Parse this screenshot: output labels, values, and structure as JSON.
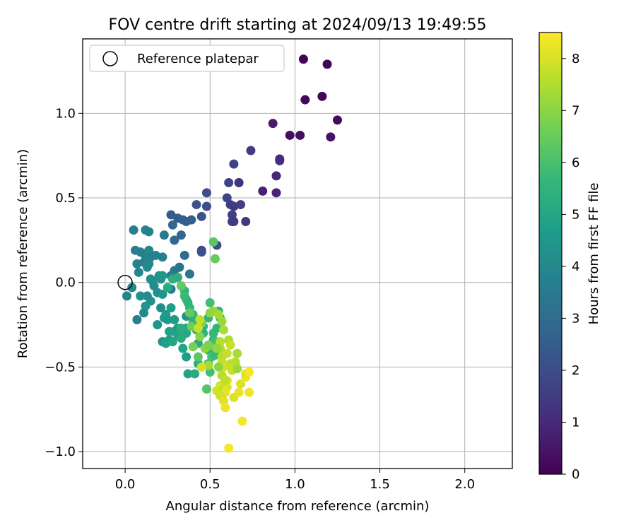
{
  "chart_data": {
    "type": "scatter",
    "title": "FOV centre drift starting at 2024/09/13 19:49:55",
    "xlabel": "Angular distance from reference (arcmin)",
    "ylabel": "Rotation from reference (arcmin)",
    "xlim": [
      -0.25,
      2.28
    ],
    "ylim": [
      -1.1,
      1.44
    ],
    "xticks": [
      0.0,
      0.5,
      1.0,
      1.5,
      2.0
    ],
    "xtick_labels": [
      "0.0",
      "0.5",
      "1.0",
      "1.5",
      "2.0"
    ],
    "yticks": [
      -1.0,
      -0.5,
      0.0,
      0.5,
      1.0
    ],
    "ytick_labels": [
      "−1.0",
      "−0.5",
      "0.0",
      "0.5",
      "1.0"
    ],
    "grid": true,
    "legend": {
      "location": "upper left",
      "entries": [
        "Reference platepar"
      ]
    },
    "reference": {
      "x": 0.0,
      "y": 0.0,
      "label": "Reference platepar"
    },
    "colorbar": {
      "label": "Hours from first FF file",
      "range": [
        0,
        8.5
      ],
      "ticks": [
        0,
        1,
        2,
        3,
        4,
        5,
        6,
        7,
        8
      ],
      "colormap": "viridis"
    },
    "colormap_stops": [
      "#440154",
      "#482878",
      "#3e4989",
      "#31688e",
      "#26828e",
      "#1f9e89",
      "#35b779",
      "#6ece58",
      "#b5de2b",
      "#fde725"
    ],
    "series": [
      {
        "columns": [
          "x",
          "y",
          "hours"
        ],
        "points": [
          [
            1.05,
            1.32,
            0.05
          ],
          [
            1.19,
            1.29,
            0.1
          ],
          [
            1.16,
            1.1,
            0.15
          ],
          [
            1.06,
            1.08,
            0.2
          ],
          [
            1.25,
            0.96,
            0.25
          ],
          [
            0.97,
            0.87,
            0.3
          ],
          [
            1.03,
            0.87,
            0.35
          ],
          [
            1.21,
            0.86,
            0.4
          ],
          [
            0.87,
            0.94,
            0.6
          ],
          [
            0.91,
            0.73,
            1.0
          ],
          [
            0.91,
            0.72,
            1.1
          ],
          [
            0.89,
            0.63,
            0.9
          ],
          [
            0.81,
            0.54,
            0.8
          ],
          [
            0.89,
            0.53,
            0.85
          ],
          [
            0.74,
            0.78,
            1.5
          ],
          [
            0.64,
            0.7,
            1.7
          ],
          [
            0.67,
            0.59,
            1.4
          ],
          [
            0.61,
            0.59,
            1.7
          ],
          [
            0.67,
            0.59,
            1.3
          ],
          [
            0.6,
            0.5,
            1.8
          ],
          [
            0.62,
            0.46,
            1.6
          ],
          [
            0.64,
            0.45,
            1.5
          ],
          [
            0.68,
            0.46,
            1.6
          ],
          [
            0.71,
            0.36,
            1.4
          ],
          [
            0.63,
            0.4,
            1.6
          ],
          [
            0.63,
            0.36,
            1.6
          ],
          [
            0.64,
            0.36,
            1.5
          ],
          [
            0.48,
            0.53,
            2.0
          ],
          [
            0.48,
            0.45,
            2.1
          ],
          [
            0.42,
            0.46,
            2.2
          ],
          [
            0.45,
            0.39,
            2.2
          ],
          [
            0.45,
            0.19,
            2.0
          ],
          [
            0.45,
            0.18,
            2.1
          ],
          [
            0.54,
            0.22,
            2.1
          ],
          [
            0.27,
            0.4,
            2.4
          ],
          [
            0.31,
            0.38,
            2.5
          ],
          [
            0.36,
            0.36,
            2.7
          ],
          [
            0.39,
            0.37,
            2.6
          ],
          [
            0.28,
            0.34,
            2.8
          ],
          [
            0.34,
            0.37,
            2.6
          ],
          [
            0.33,
            0.28,
            2.8
          ],
          [
            0.29,
            0.25,
            2.9
          ],
          [
            0.35,
            0.16,
            3.0
          ],
          [
            0.32,
            0.09,
            3.2
          ],
          [
            0.38,
            0.05,
            3.3
          ],
          [
            0.29,
            0.07,
            3.4
          ],
          [
            0.27,
            -0.04,
            3.4
          ],
          [
            0.27,
            0.04,
            3.6
          ],
          [
            0.23,
            0.28,
            3.5
          ],
          [
            0.05,
            0.31,
            3.6
          ],
          [
            0.12,
            0.31,
            3.8
          ],
          [
            0.14,
            0.3,
            3.7
          ],
          [
            0.06,
            0.19,
            3.6
          ],
          [
            0.09,
            0.18,
            3.8
          ],
          [
            0.11,
            0.17,
            3.7
          ],
          [
            0.14,
            0.19,
            3.9
          ],
          [
            0.18,
            0.16,
            3.8
          ],
          [
            0.22,
            0.15,
            3.6
          ],
          [
            0.15,
            0.15,
            3.7
          ],
          [
            0.07,
            0.11,
            3.8
          ],
          [
            0.11,
            0.12,
            3.7
          ],
          [
            0.14,
            0.11,
            3.9
          ],
          [
            0.13,
            0.09,
            4.0
          ],
          [
            0.08,
            0.06,
            3.9
          ],
          [
            0.15,
            0.02,
            4.2
          ],
          [
            0.16,
            0.01,
            4.3
          ],
          [
            0.2,
            0.04,
            4.4
          ],
          [
            0.21,
            0.02,
            4.3
          ],
          [
            0.22,
            0.04,
            4.5
          ],
          [
            0.17,
            -0.02,
            4.1
          ],
          [
            0.19,
            -0.06,
            4.2
          ],
          [
            0.22,
            -0.07,
            4.4
          ],
          [
            0.13,
            -0.08,
            4.1
          ],
          [
            0.09,
            -0.08,
            4.3
          ],
          [
            0.15,
            -0.11,
            4.2
          ],
          [
            0.12,
            -0.14,
            4.4
          ],
          [
            0.11,
            -0.18,
            4.0
          ],
          [
            0.07,
            -0.22,
            3.7
          ],
          [
            0.04,
            -0.03,
            3.9
          ],
          [
            0.01,
            -0.08,
            3.8
          ],
          [
            0.21,
            -0.15,
            4.1
          ],
          [
            0.19,
            -0.25,
            4.4
          ],
          [
            0.24,
            -0.19,
            4.6
          ],
          [
            0.23,
            -0.21,
            4.7
          ],
          [
            0.25,
            -0.22,
            4.5
          ],
          [
            0.27,
            -0.15,
            4.7
          ],
          [
            0.29,
            -0.22,
            4.6
          ],
          [
            0.31,
            -0.27,
            4.8
          ],
          [
            0.29,
            -0.29,
            4.5
          ],
          [
            0.26,
            -0.29,
            4.9
          ],
          [
            0.31,
            -0.31,
            5.0
          ],
          [
            0.26,
            -0.34,
            4.6
          ],
          [
            0.22,
            -0.35,
            4.4
          ],
          [
            0.24,
            -0.36,
            4.8
          ],
          [
            0.28,
            -0.35,
            5.0
          ],
          [
            0.25,
            -0.03,
            5.2
          ],
          [
            0.28,
            0.02,
            5.4
          ],
          [
            0.31,
            0.03,
            5.3
          ],
          [
            0.35,
            -0.05,
            5.6
          ],
          [
            0.35,
            -0.08,
            5.8
          ],
          [
            0.36,
            -0.1,
            5.7
          ],
          [
            0.37,
            -0.12,
            5.6
          ],
          [
            0.38,
            -0.15,
            5.5
          ],
          [
            0.4,
            -0.19,
            5.7
          ],
          [
            0.36,
            -0.2,
            4.5
          ],
          [
            0.4,
            -0.23,
            5.4
          ],
          [
            0.41,
            -0.25,
            5.3
          ],
          [
            0.42,
            -0.28,
            5.6
          ],
          [
            0.36,
            -0.27,
            4.9
          ],
          [
            0.36,
            -0.3,
            5.1
          ],
          [
            0.33,
            -0.27,
            5.3
          ],
          [
            0.33,
            -0.33,
            5.2
          ],
          [
            0.34,
            -0.39,
            4.9
          ],
          [
            0.36,
            -0.44,
            4.7
          ],
          [
            0.37,
            -0.54,
            4.9
          ],
          [
            0.41,
            -0.54,
            5.2
          ],
          [
            0.43,
            -0.48,
            5.3
          ],
          [
            0.43,
            -0.36,
            5.1
          ],
          [
            0.46,
            -0.3,
            5.5
          ],
          [
            0.46,
            -0.26,
            5.4
          ],
          [
            0.49,
            -0.21,
            5.6
          ],
          [
            0.49,
            -0.4,
            5.4
          ],
          [
            0.52,
            -0.34,
            5.5
          ],
          [
            0.52,
            -0.3,
            5.7
          ],
          [
            0.53,
            -0.35,
            5.8
          ],
          [
            0.54,
            -0.27,
            5.6
          ],
          [
            0.49,
            -0.48,
            5.7
          ],
          [
            0.5,
            -0.53,
            5.9
          ],
          [
            0.51,
            -0.44,
            6.0
          ],
          [
            0.53,
            -0.43,
            5.7
          ],
          [
            0.51,
            -0.38,
            6.1
          ],
          [
            0.48,
            -0.63,
            6.2
          ],
          [
            0.43,
            -0.44,
            6.3
          ],
          [
            0.55,
            -0.17,
            5.4
          ],
          [
            0.56,
            -0.21,
            5.5
          ],
          [
            0.5,
            -0.12,
            5.9
          ],
          [
            0.52,
            0.24,
            6.3
          ],
          [
            0.53,
            0.14,
            6.5
          ],
          [
            0.33,
            -0.02,
            6.4
          ],
          [
            0.38,
            -0.18,
            6.5
          ],
          [
            0.39,
            -0.26,
            6.6
          ],
          [
            0.4,
            -0.38,
            6.7
          ],
          [
            0.45,
            -0.24,
            6.8
          ],
          [
            0.44,
            -0.32,
            6.9
          ],
          [
            0.47,
            -0.39,
            7.0
          ],
          [
            0.49,
            -0.37,
            6.8
          ],
          [
            0.5,
            -0.18,
            7.0
          ],
          [
            0.52,
            -0.17,
            7.1
          ],
          [
            0.55,
            -0.19,
            7.3
          ],
          [
            0.57,
            -0.23,
            7.2
          ],
          [
            0.58,
            -0.28,
            7.4
          ],
          [
            0.56,
            -0.35,
            7.6
          ],
          [
            0.56,
            -0.39,
            7.5
          ],
          [
            0.57,
            -0.44,
            7.5
          ],
          [
            0.6,
            -0.42,
            7.8
          ],
          [
            0.57,
            -0.47,
            7.7
          ],
          [
            0.58,
            -0.5,
            7.9
          ],
          [
            0.62,
            -0.48,
            7.7
          ],
          [
            0.63,
            -0.52,
            7.8
          ],
          [
            0.65,
            -0.47,
            7.6
          ],
          [
            0.66,
            -0.42,
            7.4
          ],
          [
            0.61,
            -0.34,
            7.5
          ],
          [
            0.62,
            -0.37,
            7.8
          ],
          [
            0.49,
            -0.49,
            7.3
          ],
          [
            0.54,
            -0.64,
            7.9
          ],
          [
            0.56,
            -0.61,
            8.0
          ],
          [
            0.58,
            -0.63,
            7.7
          ],
          [
            0.6,
            -0.62,
            8.1
          ],
          [
            0.59,
            -0.65,
            8.2
          ],
          [
            0.56,
            -0.67,
            7.9
          ],
          [
            0.58,
            -0.7,
            8.1
          ],
          [
            0.59,
            -0.74,
            8.3
          ],
          [
            0.64,
            -0.68,
            8.0
          ],
          [
            0.67,
            -0.65,
            8.2
          ],
          [
            0.68,
            -0.6,
            8.0
          ],
          [
            0.71,
            -0.56,
            8.3
          ],
          [
            0.71,
            -0.54,
            8.1
          ],
          [
            0.73,
            -0.53,
            8.4
          ],
          [
            0.73,
            -0.65,
            8.3
          ],
          [
            0.69,
            -0.82,
            8.4
          ],
          [
            0.61,
            -0.98,
            8.4
          ],
          [
            0.6,
            -0.58,
            8.2
          ],
          [
            0.54,
            -0.39,
            7.1
          ],
          [
            0.55,
            -0.5,
            7.0
          ],
          [
            0.57,
            -0.55,
            7.6
          ],
          [
            0.59,
            -0.58,
            7.7
          ],
          [
            0.66,
            -0.51,
            7.2
          ],
          [
            0.45,
            -0.5,
            7.9
          ],
          [
            0.43,
            -0.27,
            7.8
          ],
          [
            0.44,
            -0.22,
            7.7
          ]
        ]
      }
    ]
  }
}
